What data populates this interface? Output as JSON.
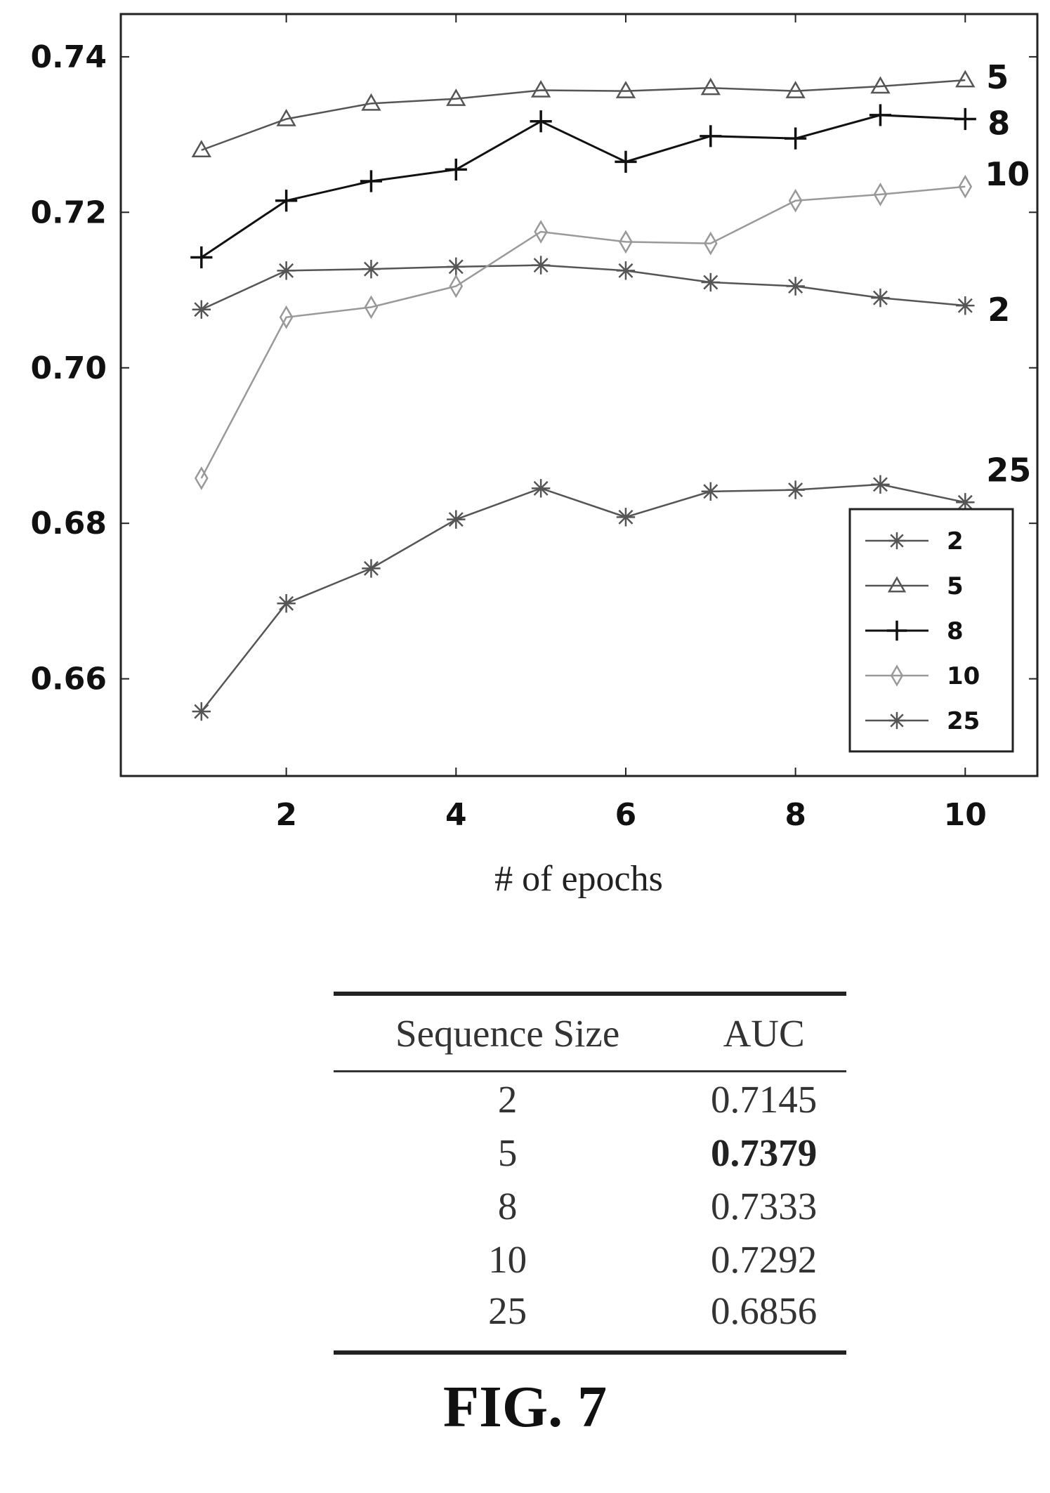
{
  "chart_data": {
    "type": "line",
    "title": "",
    "xlabel": "# of epochs",
    "ylabel": "",
    "x": [
      1,
      2,
      3,
      4,
      5,
      6,
      7,
      8,
      9,
      10
    ],
    "xticks": [
      "2",
      "4",
      "6",
      "8",
      "10"
    ],
    "yticks": [
      "0.66",
      "0.68",
      "0.70",
      "0.72",
      "0.74"
    ],
    "xlim": [
      0.05,
      10.85
    ],
    "ylim": [
      0.6475,
      0.7455
    ],
    "grid": false,
    "legend_position": "bottom-right",
    "series": [
      {
        "name": "2",
        "marker": "star",
        "color": "#555555",
        "values": [
          0.7075,
          0.7125,
          0.7127,
          0.713,
          0.7132,
          0.7125,
          0.711,
          0.7105,
          0.709,
          0.708
        ]
      },
      {
        "name": "5",
        "marker": "triangle",
        "color": "#555555",
        "values": [
          0.728,
          0.732,
          0.734,
          0.7346,
          0.7357,
          0.7356,
          0.736,
          0.7356,
          0.7362,
          0.737
        ]
      },
      {
        "name": "8",
        "marker": "plus",
        "color": "#111111",
        "values": [
          0.7142,
          0.7215,
          0.724,
          0.7255,
          0.7317,
          0.7265,
          0.7298,
          0.7295,
          0.7325,
          0.732
        ]
      },
      {
        "name": "10",
        "marker": "diamond",
        "color": "#999999",
        "values": [
          0.6858,
          0.7065,
          0.7078,
          0.7105,
          0.7175,
          0.7162,
          0.716,
          0.7215,
          0.7223,
          0.7233
        ]
      },
      {
        "name": "25",
        "marker": "star",
        "color": "#555555",
        "values": [
          0.6558,
          0.6697,
          0.6742,
          0.6805,
          0.6845,
          0.6808,
          0.6841,
          0.6843,
          0.685,
          0.6827
        ]
      }
    ],
    "end_labels": [
      "5",
      "8",
      "10",
      "2",
      "25"
    ]
  },
  "table": {
    "headers": [
      "Sequence Size",
      "AUC"
    ],
    "rows": [
      [
        "2",
        "0.7145"
      ],
      [
        "5",
        "0.7379"
      ],
      [
        "8",
        "0.7333"
      ],
      [
        "10",
        "0.7292"
      ],
      [
        "25",
        "0.6856"
      ]
    ],
    "bold_row": 1
  },
  "caption": "FIG. 7"
}
